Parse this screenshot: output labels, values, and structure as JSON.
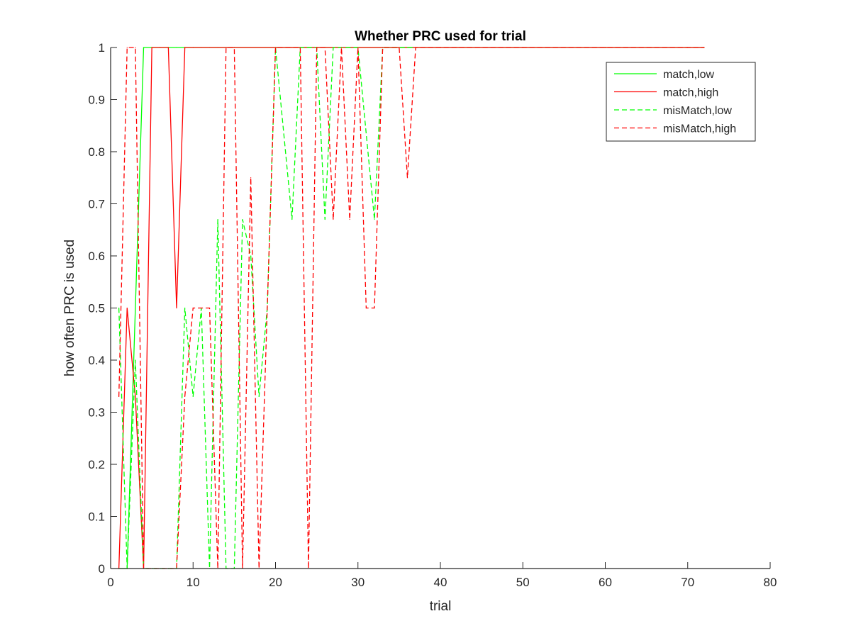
{
  "chart_data": {
    "type": "line",
    "title": "Whether PRC used for trial",
    "xlabel": "trial",
    "ylabel": "how often PRC is used",
    "xlim": [
      0,
      80
    ],
    "ylim": [
      0,
      1
    ],
    "xticks": [
      0,
      10,
      20,
      30,
      40,
      50,
      60,
      70,
      80
    ],
    "xtick_labels": [
      "0",
      "10",
      "20",
      "30",
      "40",
      "50",
      "60",
      "70",
      "80"
    ],
    "yticks": [
      0,
      0.1,
      0.2,
      0.3,
      0.4,
      0.5,
      0.6,
      0.7,
      0.8,
      0.9,
      1
    ],
    "ytick_labels": [
      "0",
      "0.1",
      "0.2",
      "0.3",
      "0.4",
      "0.5",
      "0.6",
      "0.7",
      "0.8",
      "0.9",
      "1"
    ],
    "grid": false,
    "legend_position": "top-right",
    "series": [
      {
        "name": "match,low",
        "color": "#00ff00",
        "style": "solid",
        "points": [
          [
            1,
            0
          ],
          [
            2,
            0
          ],
          [
            3,
            0.5
          ],
          [
            4,
            1
          ],
          [
            5,
            1
          ],
          [
            6,
            1
          ],
          [
            7,
            1
          ],
          [
            8,
            1
          ],
          [
            9,
            1
          ],
          [
            10,
            1
          ],
          [
            11,
            1
          ],
          [
            12,
            1
          ],
          [
            13,
            1
          ],
          [
            14,
            1
          ],
          [
            15,
            1
          ],
          [
            20,
            1
          ],
          [
            30,
            1
          ],
          [
            40,
            1
          ],
          [
            50,
            1
          ],
          [
            60,
            1
          ],
          [
            70,
            1
          ],
          [
            72,
            1
          ]
        ]
      },
      {
        "name": "match,high",
        "color": "#ff0000",
        "style": "solid",
        "points": [
          [
            1,
            0
          ],
          [
            2,
            0.5
          ],
          [
            3,
            0.33
          ],
          [
            4,
            0
          ],
          [
            5,
            1
          ],
          [
            6,
            1
          ],
          [
            7,
            1
          ],
          [
            8,
            0.5
          ],
          [
            9,
            1
          ],
          [
            10,
            1
          ],
          [
            20,
            1
          ],
          [
            30,
            1
          ],
          [
            40,
            1
          ],
          [
            50,
            1
          ],
          [
            60,
            1
          ],
          [
            70,
            1
          ],
          [
            72,
            1
          ]
        ]
      },
      {
        "name": "misMatch,low",
        "color": "#00ff00",
        "style": "dashed",
        "points": [
          [
            1,
            0.5
          ],
          [
            2,
            0
          ],
          [
            3,
            0.4
          ],
          [
            4,
            0
          ],
          [
            5,
            0
          ],
          [
            6,
            0
          ],
          [
            7,
            0
          ],
          [
            8,
            0
          ],
          [
            9,
            0.5
          ],
          [
            10,
            0.33
          ],
          [
            11,
            0.5
          ],
          [
            12,
            0
          ],
          [
            13,
            0.67
          ],
          [
            14,
            0
          ],
          [
            15,
            0
          ],
          [
            16,
            0.67
          ],
          [
            17,
            0.6
          ],
          [
            18,
            0.33
          ],
          [
            19,
            0.5
          ],
          [
            20,
            1
          ],
          [
            22,
            0.67
          ],
          [
            23,
            1
          ],
          [
            24,
            1
          ],
          [
            25,
            1
          ],
          [
            26,
            0.67
          ],
          [
            27,
            1
          ],
          [
            28,
            1
          ],
          [
            29,
            1
          ],
          [
            30,
            1
          ],
          [
            32,
            0.67
          ],
          [
            33,
            1
          ],
          [
            34,
            1
          ],
          [
            36,
            1
          ],
          [
            37,
            1
          ]
        ]
      },
      {
        "name": "misMatch,high",
        "color": "#ff0000",
        "style": "dashed",
        "points": [
          [
            1,
            0.33
          ],
          [
            2,
            1
          ],
          [
            3,
            1
          ],
          [
            4,
            0
          ],
          [
            5,
            0
          ],
          [
            6,
            0
          ],
          [
            7,
            0
          ],
          [
            8,
            0
          ],
          [
            9,
            0.33
          ],
          [
            10,
            0.5
          ],
          [
            11,
            0.5
          ],
          [
            12,
            0.5
          ],
          [
            13,
            0
          ],
          [
            14,
            1
          ],
          [
            15,
            1
          ],
          [
            16,
            0
          ],
          [
            17,
            0.75
          ],
          [
            18,
            0
          ],
          [
            19,
            0.5
          ],
          [
            20,
            1
          ],
          [
            22,
            1
          ],
          [
            23,
            1
          ],
          [
            24,
            0
          ],
          [
            25,
            1
          ],
          [
            26,
            1
          ],
          [
            27,
            0.67
          ],
          [
            28,
            1
          ],
          [
            29,
            0.67
          ],
          [
            30,
            1
          ],
          [
            31,
            0.5
          ],
          [
            32,
            0.5
          ],
          [
            33,
            1
          ],
          [
            34,
            1
          ],
          [
            35,
            1
          ],
          [
            36,
            0.75
          ],
          [
            37,
            1
          ],
          [
            40,
            1
          ],
          [
            50,
            1
          ],
          [
            60,
            1
          ],
          [
            70,
            1
          ],
          [
            72,
            1
          ]
        ]
      }
    ]
  }
}
